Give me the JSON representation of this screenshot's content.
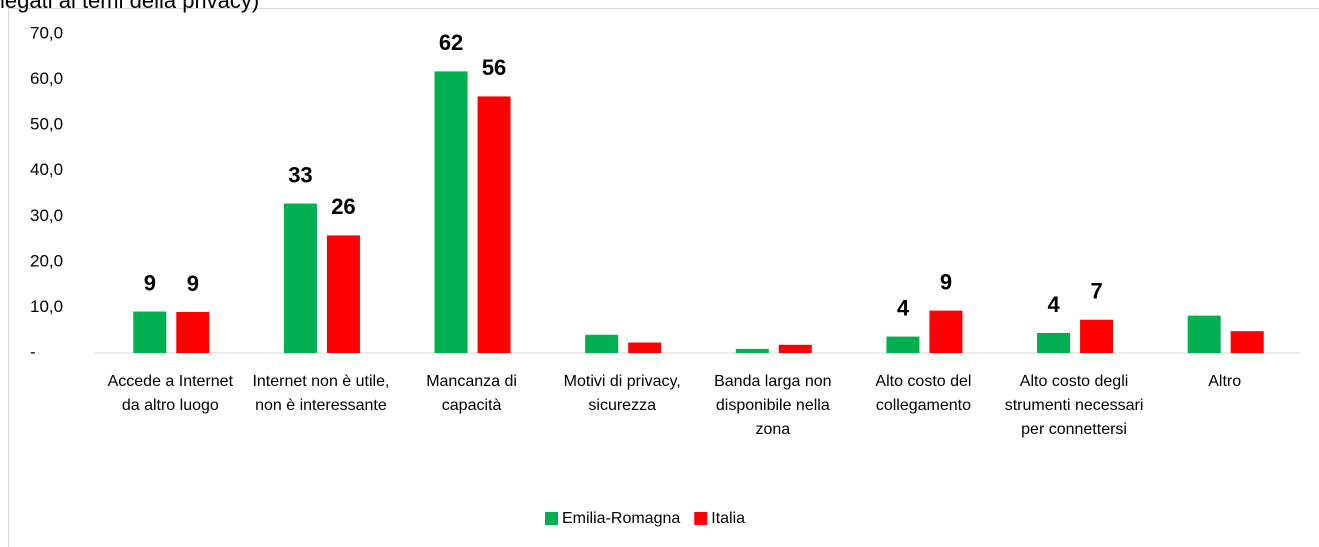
{
  "chart_data": {
    "type": "bar",
    "title": "legati ai temi della privacy)",
    "categories": [
      "Accede a Internet da altro luogo",
      "Internet non è utile, non è interessante",
      "Mancanza di capacità",
      "Motivi di privacy, sicurezza",
      "Banda larga non disponibile nella zona",
      "Alto costo del collegamento",
      "Alto costo degli strumenti necessari per connettersi",
      "Altro"
    ],
    "series": [
      {
        "name": "Emilia-Romagna",
        "color": "#00b050",
        "values": [
          9.1,
          32.8,
          61.8,
          4.0,
          0.9,
          3.6,
          4.4,
          8.2
        ],
        "value_labels": [
          "9",
          "33",
          "62",
          null,
          null,
          "4",
          "4",
          null
        ]
      },
      {
        "name": "Italia",
        "color": "#ff0000",
        "values": [
          9.0,
          25.8,
          56.3,
          2.3,
          1.8,
          9.3,
          7.3,
          4.8
        ],
        "value_labels": [
          "9",
          "26",
          "56",
          null,
          null,
          "9",
          "7",
          null
        ]
      }
    ],
    "ylim": [
      0,
      70
    ],
    "yticks": [
      {
        "value": 0,
        "label": "-"
      },
      {
        "value": 10,
        "label": "10,0"
      },
      {
        "value": 20,
        "label": "20,0"
      },
      {
        "value": 30,
        "label": "30,0"
      },
      {
        "value": 40,
        "label": "40,0"
      },
      {
        "value": 50,
        "label": "50,0"
      },
      {
        "value": 60,
        "label": "60,0"
      },
      {
        "value": 70,
        "label": "70,0"
      }
    ],
    "grid": false,
    "legend": "bottom"
  }
}
